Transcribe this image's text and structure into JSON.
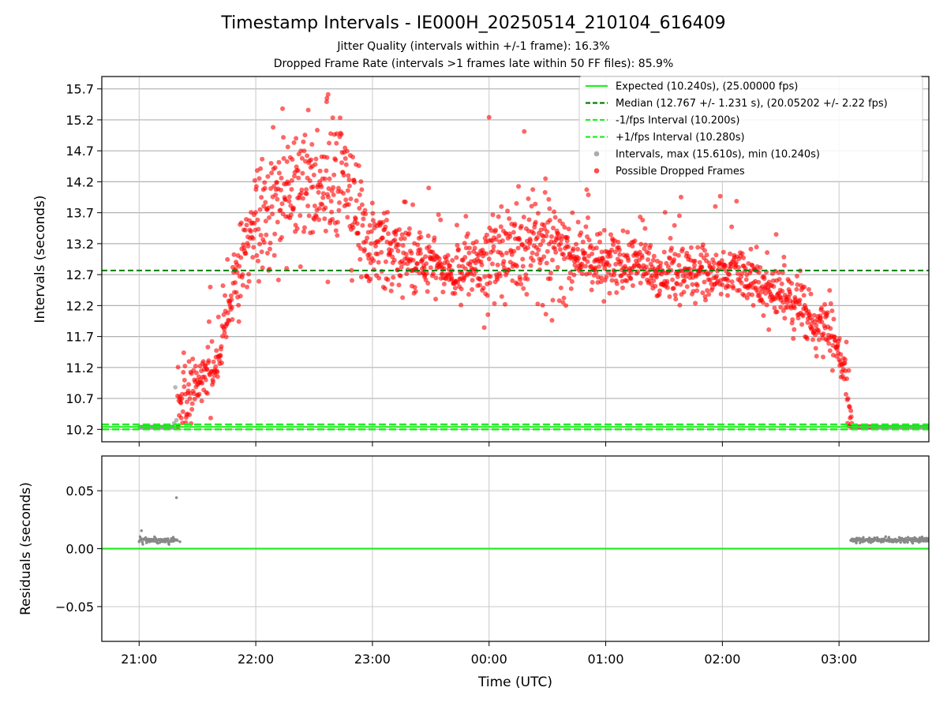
{
  "chart_data": {
    "type": "scatter",
    "title": "Timestamp Intervals - IE000H_20250514_210104_616409",
    "subtitle_lines": [
      "Jitter Quality (intervals within +/-1 frame): 16.3%",
      "Dropped Frame Rate (intervals >1 frames late within 50 FF files): 85.9%"
    ],
    "xlabel": "Time (UTC)",
    "x_ticks": [
      "21:00",
      "22:00",
      "23:00",
      "00:00",
      "01:00",
      "02:00",
      "03:00"
    ],
    "x_range_hours": [
      -0.32,
      6.77
    ],
    "grid": true,
    "legend_position": "top-right",
    "colors": {
      "expected": "#22ee22",
      "median": "#008000",
      "fps_interval": "#22ee22",
      "normal_points": "#888888",
      "dropped_points": "#ff0000"
    },
    "panels": {
      "intervals": {
        "ylabel": "Intervals (seconds)",
        "ylim": [
          10.0,
          15.9
        ],
        "y_ticks": [
          "10.2",
          "10.7",
          "11.2",
          "11.7",
          "12.2",
          "12.7",
          "13.2",
          "13.7",
          "14.2",
          "14.7",
          "15.2",
          "15.7"
        ],
        "expected": 10.24,
        "median": 12.767,
        "minus_fps": 10.2,
        "plus_fps": 10.28,
        "trend_points": [
          [
            0.0,
            10.24
          ],
          [
            0.28,
            10.24
          ],
          [
            0.33,
            10.55
          ],
          [
            0.45,
            10.8
          ],
          [
            0.55,
            10.95
          ],
          [
            0.65,
            11.1
          ],
          [
            0.7,
            11.4
          ],
          [
            0.75,
            12.0
          ],
          [
            0.8,
            12.5
          ],
          [
            0.88,
            12.9
          ],
          [
            0.95,
            13.3
          ],
          [
            1.05,
            13.7
          ],
          [
            1.2,
            13.85
          ],
          [
            1.35,
            14.0
          ],
          [
            1.5,
            14.2
          ],
          [
            1.65,
            14.1
          ],
          [
            1.75,
            14.3
          ],
          [
            1.85,
            13.8
          ],
          [
            1.95,
            13.3
          ],
          [
            2.1,
            13.1
          ],
          [
            2.3,
            12.95
          ],
          [
            2.5,
            12.85
          ],
          [
            2.7,
            12.8
          ],
          [
            2.9,
            12.85
          ],
          [
            3.0,
            12.95
          ],
          [
            3.2,
            13.1
          ],
          [
            3.35,
            13.2
          ],
          [
            3.5,
            13.1
          ],
          [
            3.7,
            12.95
          ],
          [
            3.9,
            12.9
          ],
          [
            4.1,
            12.9
          ],
          [
            4.3,
            12.85
          ],
          [
            4.5,
            12.8
          ],
          [
            4.7,
            12.75
          ],
          [
            4.9,
            12.75
          ],
          [
            5.1,
            12.75
          ],
          [
            5.3,
            12.6
          ],
          [
            5.45,
            12.4
          ],
          [
            5.6,
            12.2
          ],
          [
            5.75,
            12.0
          ],
          [
            5.88,
            11.85
          ],
          [
            6.0,
            11.5
          ],
          [
            6.05,
            11.0
          ],
          [
            6.08,
            10.6
          ],
          [
            6.1,
            10.3
          ],
          [
            6.11,
            10.24
          ],
          [
            6.3,
            10.24
          ]
        ]
      },
      "residuals": {
        "ylabel": "Residuals (seconds)",
        "ylim": [
          -0.08,
          0.08
        ],
        "y_ticks": [
          "−0.05",
          "0.00",
          "0.05"
        ],
        "y_tick_values": [
          -0.05,
          0.0,
          0.05
        ],
        "normal_ranges": [
          {
            "start": 0.0,
            "end": 0.33,
            "level": 0.0072
          },
          {
            "start": 6.1,
            "end": 6.77,
            "level": 0.0075
          }
        ],
        "outliers": [
          [
            0.02,
            0.0155
          ],
          [
            0.32,
            0.044
          ],
          [
            0.35,
            0.006
          ]
        ]
      }
    },
    "legend": [
      {
        "label": "Expected (10.240s), (25.00000 fps)",
        "style": "solid",
        "color": "#22ee22"
      },
      {
        "label": "Median (12.767 +/- 1.231 s), (20.05202 +/- 2.22 fps)",
        "style": "dashed",
        "color": "#008000"
      },
      {
        "label": "-1/fps Interval (10.200s)",
        "style": "dashed",
        "color": "#22ee22"
      },
      {
        "label": "+1/fps Interval (10.280s)",
        "style": "dashed",
        "color": "#22ee22"
      },
      {
        "label": "Intervals, max (15.610s), min (10.240s)",
        "style": "marker",
        "color": "#888888"
      },
      {
        "label": "Possible Dropped Frames",
        "style": "marker",
        "color": "#ff0000"
      }
    ]
  }
}
